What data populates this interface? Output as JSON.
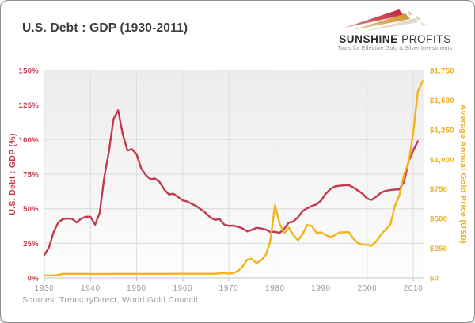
{
  "header": {
    "title": "U.S. Debt : GDP (1930-2011)"
  },
  "logo": {
    "name_bold": "SUNSHINE",
    "name_light": " PROFITS",
    "tagline": "Tools for Effective Gold & Silver Investments"
  },
  "footer": {
    "sources": "Sources: TreasuryDirect, World Gold Council"
  },
  "colors": {
    "debt_line": "#c23a4e",
    "gold_line": "#f2b31c",
    "left_axis_text": "#c23a4e",
    "right_axis_text": "#f0ac1d",
    "x_axis_text": "#9a9a9a",
    "grid": "#dadada",
    "plot_bg_top": "#ececec",
    "plot_bg_bottom": "#fdfdfd"
  },
  "chart_data": {
    "type": "line",
    "title": "U.S. Debt : GDP (1930-2011)",
    "grid": true,
    "legend": "none (axes are color-coded to series)",
    "x_axis": {
      "range": [
        1930,
        2012.4
      ],
      "tick_step": 10,
      "first_tick": 1930,
      "tick_labels": [
        "1930",
        "1940",
        "1950",
        "1960",
        "1970",
        "1980",
        "1990",
        "2000",
        "2010"
      ]
    },
    "left_axis": {
      "label": "U.S. Debt : GDP (%)",
      "range": [
        0,
        150
      ],
      "tick_step": 25,
      "tick_labels": [
        "0%",
        "25%",
        "50%",
        "75%",
        "100%",
        "125%",
        "150%"
      ]
    },
    "right_axis": {
      "label": "Average Annual Gold Price (USD)",
      "range": [
        0,
        1750
      ],
      "tick_step": 250,
      "tick_labels": [
        "$0",
        "$250",
        "$500",
        "$750",
        "$1,000",
        "$1,250",
        "$1,500",
        "$1,750"
      ]
    },
    "series": [
      {
        "name": "U.S. Debt : GDP (%)",
        "axis": "left",
        "color": "#c23a4e",
        "start_year": 1930,
        "values": [
          16.6,
          21.9,
          33.1,
          40.0,
          42.5,
          42.9,
          42.7,
          40.1,
          42.8,
          44.2,
          44.2,
          38.5,
          47.0,
          72.8,
          91.5,
          114.9,
          121.2,
          103.9,
          92.1,
          93.1,
          89.4,
          79.1,
          74.3,
          71.4,
          71.8,
          69.3,
          63.9,
          60.4,
          60.8,
          58.5,
          56.0,
          55.2,
          53.4,
          51.8,
          49.4,
          46.9,
          43.6,
          41.9,
          42.5,
          38.6,
          37.6,
          37.8,
          37.0,
          35.7,
          33.6,
          34.7,
          36.2,
          35.8,
          35.0,
          33.2,
          33.4,
          32.5,
          35.3,
          39.9,
          40.8,
          43.8,
          48.2,
          50.4,
          51.9,
          53.1,
          55.9,
          60.7,
          64.1,
          66.1,
          66.6,
          67.0,
          67.1,
          65.4,
          63.2,
          60.9,
          57.3,
          56.4,
          58.8,
          61.6,
          63.0,
          63.5,
          63.9,
          64.0,
          69.4,
          84.2,
          92.1,
          98.7
        ]
      },
      {
        "name": "Average Annual Gold Price (USD)",
        "axis": "right",
        "color": "#f2b31c",
        "start_year": 1930,
        "values": [
          20.7,
          20.7,
          20.7,
          26.3,
          34.7,
          34.8,
          35.0,
          34.8,
          34.9,
          34.4,
          33.9,
          33.9,
          33.9,
          33.9,
          33.9,
          34.7,
          34.7,
          34.7,
          34.7,
          34.7,
          34.7,
          34.7,
          34.6,
          34.8,
          35.0,
          35.0,
          34.9,
          34.9,
          35.1,
          35.1,
          35.3,
          35.3,
          35.2,
          35.1,
          35.1,
          35.1,
          35.1,
          35.0,
          38.7,
          41.1,
          35.9,
          40.8,
          58.2,
          97.3,
          154.0,
          160.9,
          124.7,
          147.7,
          193.2,
          306.0,
          615.0,
          460.0,
          375.8,
          424.4,
          360.5,
          317.3,
          367.7,
          446.5,
          437.0,
          381.4,
          383.5,
          362.1,
          343.8,
          359.8,
          384.0,
          384.2,
          387.8,
          331.0,
          294.2,
          278.9,
          279.1,
          271.0,
          309.7,
          363.4,
          409.7,
          444.7,
          603.5,
          695.4,
          871.9,
          972.4,
          1224.5,
          1571.5,
          1660.0
        ]
      }
    ]
  }
}
